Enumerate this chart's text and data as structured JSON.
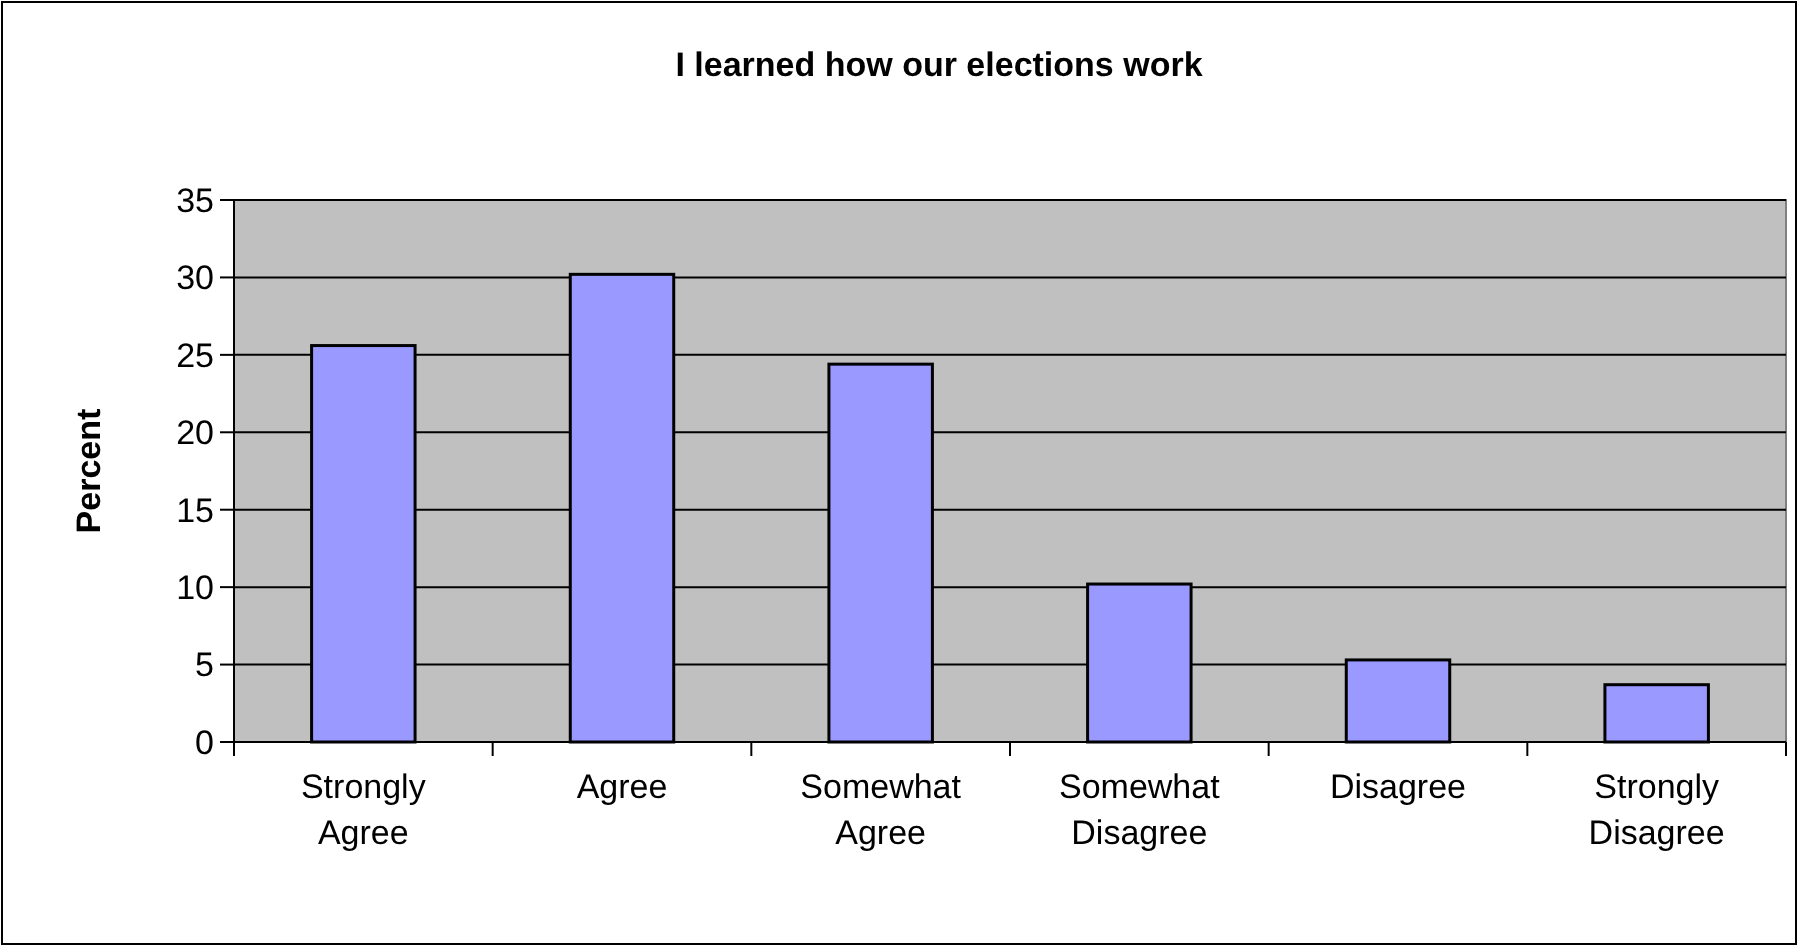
{
  "chart_data": {
    "type": "bar",
    "title": "I learned how our elections work",
    "ylabel": "Percent",
    "categories": [
      "Strongly Agree",
      "Agree",
      "Somewhat Agree",
      "Somewhat Disagree",
      "Disagree",
      "Strongly Disagree"
    ],
    "values": [
      25.6,
      30.2,
      24.4,
      10.2,
      5.3,
      3.7
    ],
    "color": "#9999ff",
    "ylim": [
      0,
      35
    ],
    "yticks": [
      0,
      5,
      10,
      15,
      20,
      25,
      30,
      35
    ],
    "grid": "y"
  }
}
